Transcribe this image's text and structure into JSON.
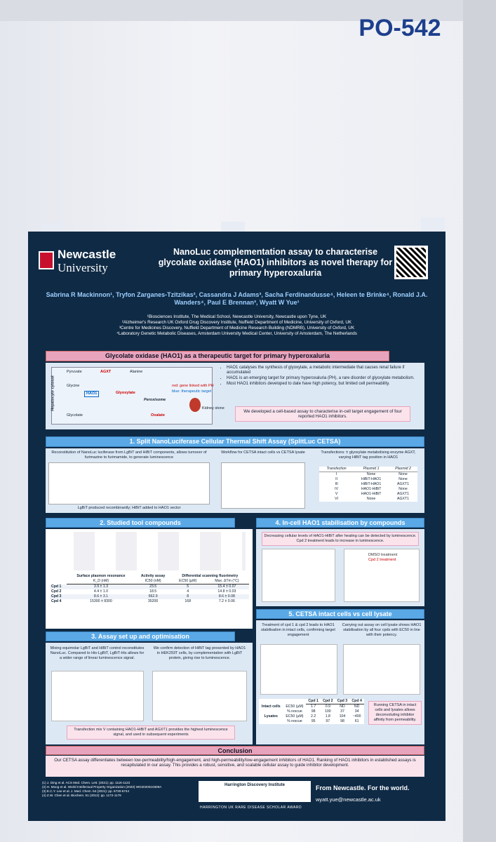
{
  "board_label": "PO-542",
  "header": {
    "logo_line1": "Newcastle",
    "logo_line2": "University",
    "title": "NanoLuc complementation assay to characterise glycolate oxidase (HAO1) inhibitors as novel therapy for primary hyperoxaluria",
    "authors": "Sabrina R Mackinnon¹, Tryfon Zarganes-Tzitzikas², Cassandra J Adams³, Sacha Ferdinandusse⁴, Heleen te Brinke⁴, Ronald J.A. Wanders⁴, Paul E Brennan³, Wyatt W Yue¹",
    "affiliations": [
      "¹Biosciences Institute, The Medical School, Newcastle University, Newcastle upon Tyne, UK",
      "²Alzheimer's Research UK Oxford Drug Discovery Institute, Nuffield Department of Medicine, University of Oxford, UK",
      "³Centre for Medicines Discovery, Nuffield Department of Medicine Research Building (NDMRB), University of Oxford, UK",
      "⁴Laboratory Genetic Metabolic Diseases, Amsterdam University Medical Center, University of Amsterdam, The Netherlands"
    ]
  },
  "intro": {
    "title": "Glycolate oxidase (HAO1) as a therapeutic target for primary hyperoxaluria",
    "diagram": [
      "Hepatocyte cytosol",
      "Pyruvate",
      "AGXT",
      "Alanine",
      "Glycine",
      "HAO1",
      "Glyoxylate",
      "Peroxisome",
      "Glycolate",
      "Oxalate",
      "Kidney stone",
      "red: gene linked with PH",
      "blue: therapeutic target"
    ],
    "bullets": [
      "HAO1 catalyses the synthesis of glyoxylate, a metabolic intermediate that causes renal failure if accumulated",
      "HAO1 is an emerging target for primary hyperoxaluria (PH), a rare disorder of glyoxylate metabolism.",
      "Most HAO1 inhibitors developed to date have high potency, but limited cell permeability."
    ],
    "callout": "We developed a cell-based assay to characterise in-cell target engagement of four reported HAO1 inhibitors."
  },
  "s1": {
    "title": "1. Split NanoLuciferase Cellular Thermal Shift Assay (SplitLuc CETSA)",
    "text_left": "Reconstitution of NanoLuc luciferase from LgBiT and HiBiT components, allows turnover of furimazine to furimamide, to generate luminescence",
    "note": "LgBiT produced recombinantly; HiBiT added to HAO1 vector",
    "text_mid": "Workflow for CETSA intact cells vs CETSA lysate",
    "text_right": "Transfections: ± glyoxylate metabolising enzyme AGXT, varying HiBiT tag position in HAO1",
    "table": {
      "header": [
        "Transfection",
        "Plasmid 1",
        "Plasmid 2"
      ],
      "rows": [
        [
          "I",
          "None",
          "None"
        ],
        [
          "II",
          "HiBiT-HAO1",
          "None"
        ],
        [
          "III",
          "HiBiT-HAO1",
          "AGXT1"
        ],
        [
          "IV",
          "HAO1-HiBiT",
          "None"
        ],
        [
          "V",
          "HAO1-HiBiT",
          "AGXT1"
        ],
        [
          "VI",
          "None",
          "AGXT1"
        ]
      ]
    }
  },
  "s2": {
    "title": "2. Studied tool compounds",
    "table": {
      "groups": [
        "Surface plasmon resonance",
        "Activity assay",
        "Differential scanning fluorimetry"
      ],
      "header": [
        "K_D (nM)",
        "IC50 (nM)",
        "EC50 (µM)",
        "Max. ΔTm (°C)"
      ],
      "rows": [
        [
          "Cpd 1",
          "3.9 ± 1.3",
          "23.5",
          "5",
          "15.4 ± 0.07"
        ],
        [
          "Cpd 2",
          "4.4 ± 1.0",
          "18.5",
          "4",
          "14.8 ± 0.03"
        ],
        [
          "Cpd 3",
          "8.6 ± 3.1",
          "562.9",
          "8",
          "8.6 ± 0.08"
        ],
        [
          "Cpd 4",
          "15300 ± 8300",
          "35200",
          "168",
          "7.2 ± 0.06"
        ]
      ]
    }
  },
  "s3": {
    "title": "3. Assay set up and optimisation",
    "text_left": "Mixing equimolar LgBiT and HiBiT control reconstitutes NanoLuc. Compared to His-LgBiT, LgBiT-His allows for a wider range of linear luminescence signal.",
    "text_right": "We confirm detection of HiBiT tag presented by HAO1 in HEK293T cells, by complementation with LgBiT protein, giving rise to luminescence.",
    "text_bottom": "Transfection mix V containing HAO1-HiBiT and AGXT1 provides the highest luminescence signal, and used in subsequent experiments"
  },
  "s4": {
    "title": "4. In-cell HAO1 stabilisation by compounds",
    "text": "Decreasing cellular levels of HAO1-HiBiT after heating can be detected by luminescence. Cpd 2 treatment leads to increase in luminescence.",
    "legend": [
      "DMSO treatment",
      "Cpd 2 treatment"
    ]
  },
  "s5": {
    "title": "5. CETSA intact cells vs cell lysate",
    "text_left": "Treatment of cpd 1 & cpd 2 leads to HAO1 stabilisation in intact cells, confirming target engagement",
    "text_right": "Carrying out assay on cell lysate shows HAO1 stabilisation by all four cpds with EC50 in line with their potency.",
    "text_bottom": "Running CETSA in intact cells and lysates allows deconvoluting inhibitor affinity from permeability.",
    "table": {
      "header": [
        "Cpd 1",
        "Cpd 2",
        "Cpd 3",
        "Cpd 4"
      ],
      "rows": [
        [
          "Intact cells",
          "EC50 (µM)",
          "1.7",
          "0.9",
          "ND",
          "ND"
        ],
        [
          "",
          "% rescue",
          "98",
          "100",
          "37",
          "34"
        ],
        [
          "Lysates",
          "EC50 (µM)",
          "2.2",
          "1.8",
          "104",
          "~400"
        ],
        [
          "",
          "% rescue",
          "95",
          "97",
          "98",
          "61"
        ]
      ]
    }
  },
  "conclusion": {
    "title": "Conclusion",
    "text": "Our CETSA assay differentiates between low-permeability/high-engagement, and high-permeability/low-engagement inhibitors of HAO1. Ranking of HAO1 inhibitors in established assays is recapitulated in our assay. This provides a robust, sensitive, and scalable cellular assay to guide inhibitor development."
  },
  "footer": {
    "references": [
      "(1) J. Ding et al. ACS Med. Chem. Lett. (2021): pp. 1116-1123",
      "(2) H. Moog et al. World Intellectual Property Organization (2020) WO2020010309A",
      "(3) E.C.Y. Lee et al. J. Med. Chem. 64 (2021): pp. 6730-6744",
      "(4) Z.W. Chen et al. Biochem. 51 (2012): pp. 1172-1179"
    ],
    "sponsor": "Harrington Discovery Institute",
    "award": "HARRINGTON UK RARE DISEASE SCHOLAR AWARD",
    "slogan": "From Newcastle. For the world.",
    "email": "wyatt.yue@newcastle.ac.uk"
  }
}
